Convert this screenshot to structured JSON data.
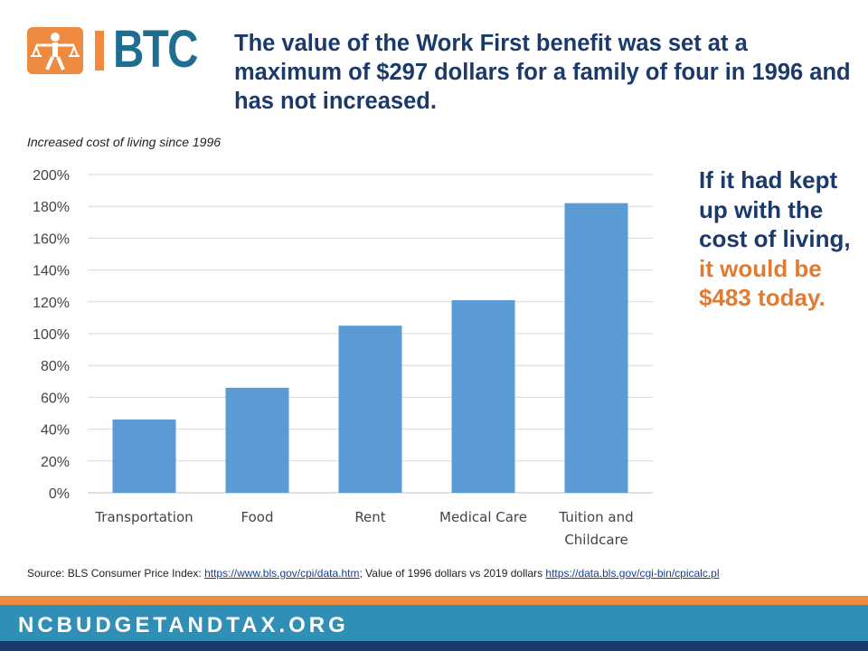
{
  "logo": {
    "text": "BTC",
    "icon": "figure-with-scales-icon",
    "color_orange": "#ef8a41",
    "color_blue": "#1f6e92"
  },
  "headline": "The value of the Work First benefit was set at a maximum of $297 dollars for a family of four in 1996 and has not increased.",
  "callout": {
    "part1": "If it had kept up with the cost of living, ",
    "part2": "it would be $483 today."
  },
  "source": {
    "prefix": "Source: BLS Consumer Price Index: ",
    "link1": "https://www.bls.gov/cpi/data.htm",
    "middle": "; Value of 1996 dollars vs 2019 dollars ",
    "link2": "https://data.bls.gov/cgi-bin/cpicalc.pl"
  },
  "footer": {
    "text": "NCBUDGETANDTAX.ORG"
  },
  "chart_data": {
    "type": "bar",
    "title": "Increased cost of living since 1996",
    "categories": [
      "Transportation",
      "Food",
      "Rent",
      "Medical Care",
      "Tuition and Childcare"
    ],
    "values": [
      46,
      66,
      105,
      121,
      182
    ],
    "ylim": [
      0,
      200
    ],
    "yticks": [
      "0%",
      "20%",
      "40%",
      "60%",
      "80%",
      "100%",
      "120%",
      "140%",
      "160%",
      "180%",
      "200%"
    ],
    "grid": true,
    "bar_color": "#5b9bd5",
    "legend": "none"
  }
}
